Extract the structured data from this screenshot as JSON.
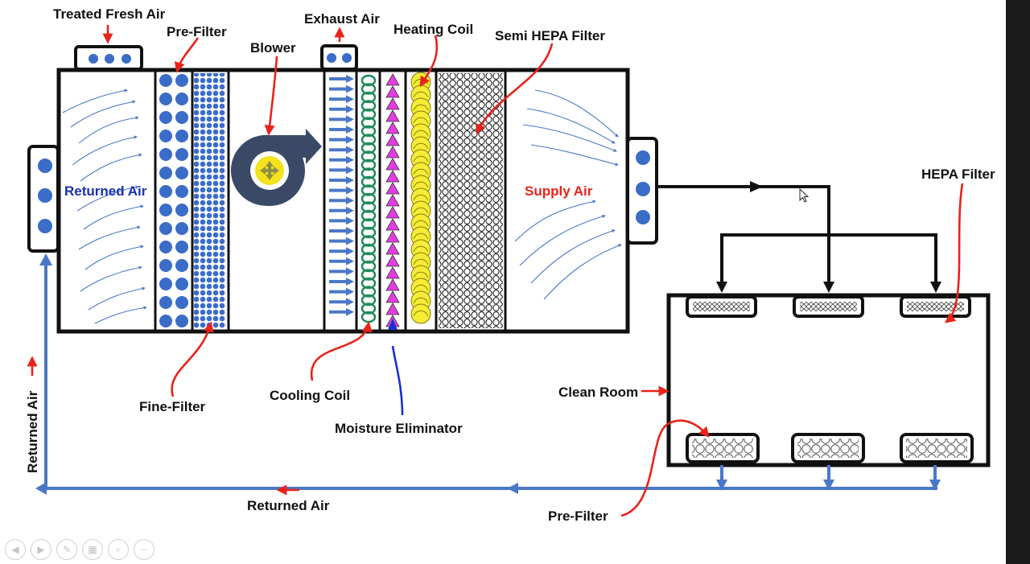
{
  "labels": {
    "treated_fresh_air": "Treated Fresh Air",
    "pre_filter_top": "Pre-Filter",
    "blower": "Blower",
    "exhaust_air": "Exhaust Air",
    "heating_coil": "Heating Coil",
    "semi_hepa_filter": "Semi HEPA Filter",
    "returned_air_inside": "Returned Air",
    "supply_air": "Supply Air",
    "hepa_filter": "HEPA Filter",
    "fine_filter": "Fine-Filter",
    "cooling_coil": "Cooling Coil",
    "moisture_eliminator": "Moisture Eliminator",
    "clean_room": "Clean Room",
    "returned_air_vertical": "Returned Air",
    "returned_air_bottom": "Returned Air",
    "pre_filter_bottom": "Pre-Filter"
  },
  "colors": {
    "outline": "#111111",
    "callout_arrow": "#e8231a",
    "duct_blue": "#4a78c8",
    "filter_blue": "#3a6cc8",
    "blower_dark": "#3a4a66",
    "blower_yellow": "#f3e21c",
    "cooling_green": "#1f8a5a",
    "moisture_magenta": "#e23de0",
    "heating_yellow": "#f5ec35",
    "returned_air_text": "#1a2fb5",
    "supply_air_text": "#e8231a"
  },
  "icons": {
    "player_controls": [
      "previous-icon",
      "next-icon",
      "pen-icon",
      "slides-icon",
      "zoom-icon",
      "more-icon"
    ]
  }
}
